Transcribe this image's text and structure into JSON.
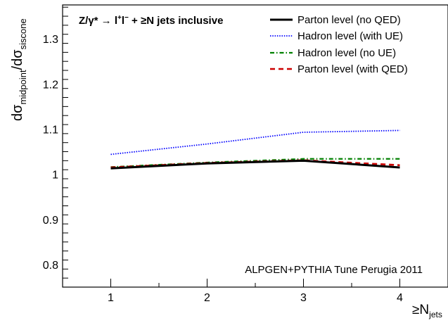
{
  "chart_data": {
    "type": "line",
    "x": [
      1,
      2,
      3,
      4
    ],
    "xlim": [
      0.5,
      4.5
    ],
    "ylim": [
      0.75,
      1.375
    ],
    "x_ticks": [
      1,
      2,
      3,
      4
    ],
    "y_ticks": [
      0.8,
      0.9,
      1,
      1.1,
      1.2,
      1.3
    ],
    "x_tick_labels": [
      "1",
      "2",
      "3",
      "4"
    ],
    "y_tick_labels": [
      "0.8",
      "0.9",
      "1",
      "1.1",
      "1.2",
      "1.3"
    ],
    "xlabel": "≥N",
    "xlabel_sub": "jets",
    "ylabel_parts": [
      "dσ",
      "midpoint",
      "/dσ",
      "siscone"
    ],
    "title_parts": [
      "Z/γ* → l",
      "+",
      "l",
      "−",
      " + ≥N jets inclusive"
    ],
    "annotation": "ALPGEN+PYTHIA Tune Perugia 2011",
    "grid": false,
    "legend_position": "top-right",
    "series": [
      {
        "name": "Parton level (no QED)",
        "values": [
          1.013,
          1.024,
          1.03,
          1.015
        ],
        "color": "#000000",
        "style": "solid"
      },
      {
        "name": "Hadron level (with UE)",
        "values": [
          1.044,
          1.067,
          1.093,
          1.097
        ],
        "color": "#0000ff",
        "style": "dotted"
      },
      {
        "name": "Hadron level (no UE)",
        "values": [
          1.016,
          1.026,
          1.034,
          1.034
        ],
        "color": "#008000",
        "style": "dashdot"
      },
      {
        "name": "Parton level (with QED)",
        "values": [
          1.015,
          1.025,
          1.031,
          1.02
        ],
        "color": "#cc0000",
        "style": "dashed"
      }
    ]
  }
}
